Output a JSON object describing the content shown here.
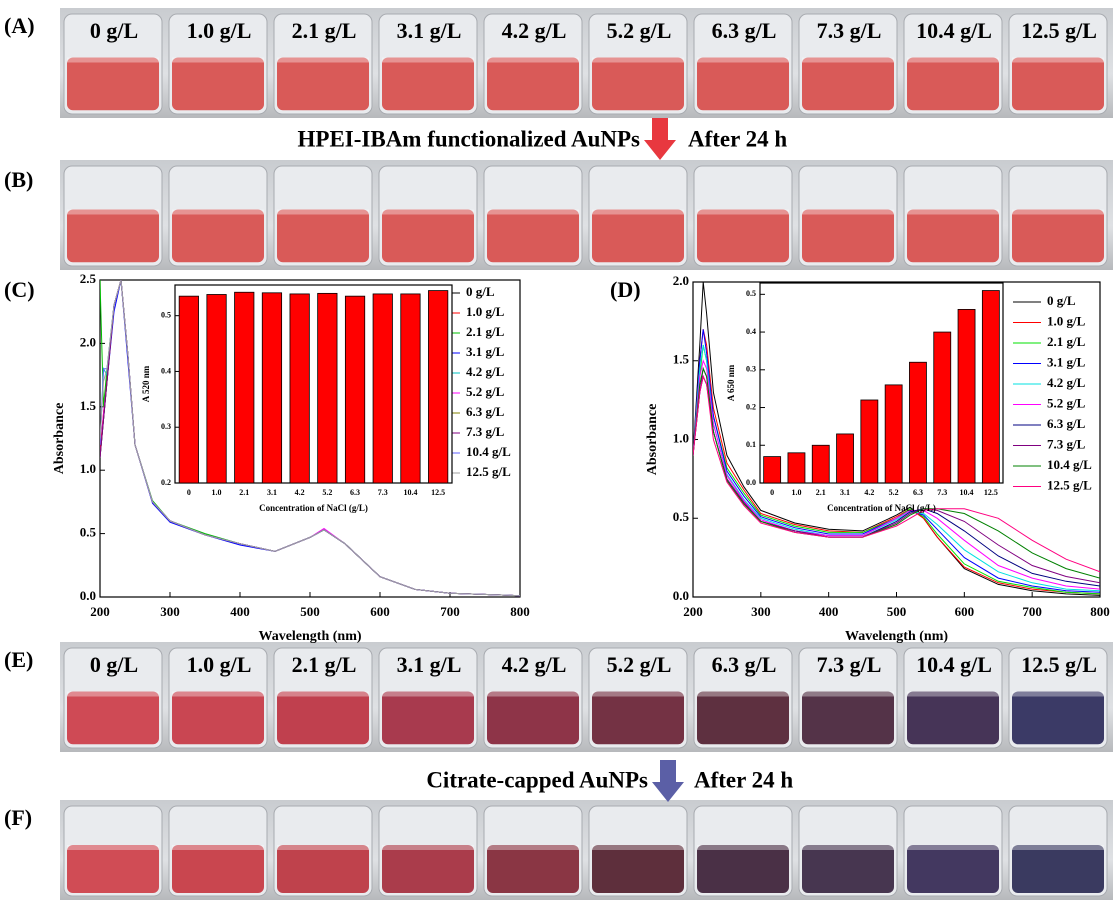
{
  "panel_labels": [
    "(A)",
    "(B)",
    "(C)",
    "(D)",
    "(E)",
    "(F)"
  ],
  "photo_A": {
    "vial_labels": [
      "0 g/L",
      "1.0 g/L",
      "2.1 g/L",
      "3.1 g/L",
      "4.2 g/L",
      "5.2 g/L",
      "6.3 g/L",
      "7.3 g/L",
      "10.4 g/L",
      "12.5 g/L"
    ]
  },
  "caption_1": {
    "text": "HPEI-IBAm functionalized AuNPs",
    "after": "After 24 h"
  },
  "photo_E": {
    "vial_labels": [
      "0 g/L",
      "1.0 g/L",
      "2.1 g/L",
      "3.1 g/L",
      "4.2 g/L",
      "5.2 g/L",
      "6.3 g/L",
      "7.3 g/L",
      "10.4 g/L",
      "12.5 g/L"
    ]
  },
  "caption_2": {
    "text": "Citrate-capped AuNPs",
    "after": "After 24 h"
  },
  "chart_data": [
    {
      "type": "line",
      "x_label": "Wavelength (nm)",
      "y_label": "Absorbance",
      "xlim": [
        200,
        800
      ],
      "xticks": [
        200,
        300,
        400,
        500,
        600,
        700,
        800
      ],
      "ylim": [
        0,
        2.5
      ],
      "yticks": [
        {
          "value": 0,
          "label": "0.0"
        },
        0.5,
        {
          "value": 1,
          "label": "1.0"
        },
        1.5,
        {
          "value": 2,
          "label": "2.0"
        },
        2.5
      ],
      "x": [
        200,
        205,
        210,
        220,
        230,
        240,
        250,
        275,
        300,
        350,
        400,
        450,
        500,
        520,
        550,
        600,
        650,
        700,
        800
      ],
      "series": [
        {
          "name": "0 g/L",
          "color": "#000000",
          "values": [
            1.1,
            1.4,
            1.7,
            2.3,
            2.5,
            1.9,
            1.2,
            0.75,
            0.6,
            0.49,
            0.42,
            0.36,
            0.47,
            0.53,
            0.42,
            0.16,
            0.06,
            0.03,
            0.01
          ]
        },
        {
          "name": "1.0 g/L",
          "color": "#ff0000",
          "values": [
            1.15,
            1.45,
            1.75,
            2.3,
            2.5,
            1.9,
            1.2,
            0.75,
            0.6,
            0.49,
            0.42,
            0.36,
            0.47,
            0.53,
            0.42,
            0.16,
            0.06,
            0.03,
            0.01
          ]
        },
        {
          "name": "2.1 g/L",
          "color": "#00c000",
          "values": [
            2.5,
            1.5,
            1.8,
            2.3,
            2.5,
            1.9,
            1.2,
            0.76,
            0.6,
            0.5,
            0.42,
            0.36,
            0.47,
            0.53,
            0.42,
            0.16,
            0.06,
            0.03,
            0.01
          ]
        },
        {
          "name": "3.1 g/L",
          "color": "#0000ff",
          "values": [
            1.1,
            1.4,
            1.7,
            2.25,
            2.5,
            1.85,
            1.2,
            0.74,
            0.59,
            0.49,
            0.41,
            0.36,
            0.47,
            0.53,
            0.42,
            0.16,
            0.06,
            0.03,
            0.01
          ]
        },
        {
          "name": "4.2 g/L",
          "color": "#00c0c0",
          "values": [
            1.2,
            1.8,
            1.75,
            2.3,
            2.5,
            1.9,
            1.2,
            0.75,
            0.6,
            0.49,
            0.42,
            0.36,
            0.47,
            0.53,
            0.42,
            0.16,
            0.06,
            0.03,
            0.01
          ]
        },
        {
          "name": "5.2 g/L",
          "color": "#ff00ff",
          "values": [
            1.1,
            1.45,
            1.7,
            2.3,
            2.5,
            1.9,
            1.2,
            0.75,
            0.6,
            0.49,
            0.42,
            0.36,
            0.47,
            0.54,
            0.42,
            0.16,
            0.06,
            0.03,
            0.01
          ]
        },
        {
          "name": "6.3 g/L",
          "color": "#808000",
          "values": [
            1.1,
            1.4,
            1.7,
            2.3,
            2.5,
            1.9,
            1.2,
            0.75,
            0.6,
            0.49,
            0.42,
            0.36,
            0.47,
            0.53,
            0.42,
            0.16,
            0.06,
            0.03,
            0.01
          ]
        },
        {
          "name": "7.3 g/L",
          "color": "#800080",
          "values": [
            1.1,
            1.4,
            1.7,
            2.3,
            2.5,
            1.9,
            1.2,
            0.75,
            0.6,
            0.49,
            0.42,
            0.36,
            0.47,
            0.53,
            0.42,
            0.16,
            0.06,
            0.03,
            0.01
          ]
        },
        {
          "name": "10.4 g/L",
          "color": "#6060ff",
          "values": [
            1.2,
            1.8,
            1.8,
            2.3,
            2.5,
            1.9,
            1.2,
            0.75,
            0.6,
            0.49,
            0.42,
            0.36,
            0.47,
            0.53,
            0.42,
            0.16,
            0.06,
            0.03,
            0.01
          ]
        },
        {
          "name": "12.5 g/L",
          "color": "#a0a0a0",
          "values": [
            1.25,
            1.7,
            1.8,
            2.3,
            2.5,
            1.9,
            1.2,
            0.75,
            0.6,
            0.49,
            0.42,
            0.36,
            0.47,
            0.53,
            0.42,
            0.16,
            0.06,
            0.03,
            0.01
          ]
        }
      ]
    },
    {
      "type": "bar",
      "x_label": "Concentration of NaCl (g/L)",
      "y_label": "A 520 nm",
      "categories": [
        "0",
        "1.0",
        "2.1",
        "3.1",
        "4.2",
        "5.2",
        "6.3",
        "7.3",
        "10.4",
        "12.5"
      ],
      "values": [
        0.535,
        0.538,
        0.542,
        0.541,
        0.539,
        0.54,
        0.535,
        0.539,
        0.539,
        0.545
      ],
      "color": "#ff0000",
      "ylim": [
        0.2,
        0.555
      ],
      "yticks": [
        0.2,
        0.3,
        0.4,
        0.5
      ]
    },
    {
      "type": "line",
      "x_label": "Wavelength (nm)",
      "y_label": "Absorbance",
      "xlim": [
        200,
        800
      ],
      "xticks": [
        200,
        300,
        400,
        500,
        600,
        700,
        800
      ],
      "ylim": [
        0,
        2.0
      ],
      "yticks": [
        {
          "value": 0,
          "label": "0.0"
        },
        0.5,
        {
          "value": 1,
          "label": "1.0"
        },
        1.5,
        {
          "value": 2,
          "label": "2.0"
        }
      ],
      "x": [
        200,
        210,
        215,
        220,
        230,
        250,
        275,
        300,
        350,
        400,
        450,
        500,
        520,
        540,
        560,
        600,
        650,
        700,
        750,
        800
      ],
      "series": [
        {
          "name": "0 g/L",
          "color": "#000000",
          "values": [
            0.9,
            1.6,
            2.0,
            1.8,
            1.3,
            0.9,
            0.7,
            0.55,
            0.47,
            0.43,
            0.42,
            0.52,
            0.57,
            0.5,
            0.38,
            0.18,
            0.08,
            0.04,
            0.02,
            0.01
          ]
        },
        {
          "name": "1.0 g/L",
          "color": "#ff0000",
          "values": [
            0.9,
            1.5,
            1.7,
            1.6,
            1.2,
            0.85,
            0.68,
            0.53,
            0.46,
            0.42,
            0.41,
            0.51,
            0.56,
            0.5,
            0.38,
            0.19,
            0.09,
            0.05,
            0.03,
            0.02
          ]
        },
        {
          "name": "2.1 g/L",
          "color": "#00e000",
          "values": [
            0.9,
            1.4,
            1.6,
            1.5,
            1.15,
            0.82,
            0.66,
            0.52,
            0.45,
            0.41,
            0.41,
            0.5,
            0.56,
            0.51,
            0.4,
            0.21,
            0.1,
            0.06,
            0.03,
            0.02
          ]
        },
        {
          "name": "3.1 g/L",
          "color": "#0000ff",
          "values": [
            0.9,
            1.5,
            1.7,
            1.55,
            1.15,
            0.8,
            0.64,
            0.51,
            0.44,
            0.4,
            0.4,
            0.5,
            0.55,
            0.52,
            0.43,
            0.25,
            0.12,
            0.07,
            0.04,
            0.03
          ]
        },
        {
          "name": "4.2 g/L",
          "color": "#00e0e0",
          "values": [
            0.9,
            1.45,
            1.6,
            1.5,
            1.1,
            0.78,
            0.62,
            0.5,
            0.43,
            0.39,
            0.39,
            0.49,
            0.54,
            0.53,
            0.46,
            0.3,
            0.16,
            0.09,
            0.05,
            0.04
          ]
        },
        {
          "name": "5.2 g/L",
          "color": "#ff00ff",
          "values": [
            0.9,
            1.4,
            1.5,
            1.45,
            1.1,
            0.77,
            0.61,
            0.49,
            0.42,
            0.39,
            0.39,
            0.5,
            0.55,
            0.55,
            0.5,
            0.36,
            0.2,
            0.12,
            0.07,
            0.05
          ]
        },
        {
          "name": "6.3 g/L",
          "color": "#000080",
          "values": [
            0.9,
            1.3,
            1.4,
            1.35,
            1.05,
            0.75,
            0.6,
            0.48,
            0.42,
            0.38,
            0.38,
            0.48,
            0.54,
            0.56,
            0.53,
            0.42,
            0.26,
            0.15,
            0.1,
            0.07
          ]
        },
        {
          "name": "7.3 g/L",
          "color": "#800080",
          "values": [
            0.9,
            1.3,
            1.45,
            1.4,
            1.05,
            0.75,
            0.6,
            0.48,
            0.42,
            0.38,
            0.38,
            0.47,
            0.53,
            0.56,
            0.55,
            0.48,
            0.33,
            0.2,
            0.13,
            0.09
          ]
        },
        {
          "name": "10.4 g/L",
          "color": "#008000",
          "values": [
            0.9,
            1.35,
            1.45,
            1.4,
            1.05,
            0.74,
            0.59,
            0.48,
            0.41,
            0.38,
            0.38,
            0.46,
            0.52,
            0.56,
            0.56,
            0.53,
            0.42,
            0.28,
            0.18,
            0.12
          ]
        },
        {
          "name": "12.5 g/L",
          "color": "#ff0080",
          "values": [
            0.9,
            1.3,
            1.4,
            1.35,
            1.0,
            0.73,
            0.58,
            0.47,
            0.41,
            0.38,
            0.38,
            0.45,
            0.5,
            0.55,
            0.56,
            0.56,
            0.5,
            0.36,
            0.24,
            0.16
          ]
        }
      ]
    },
    {
      "type": "bar",
      "x_label": "Concentration of NaCl (g/L)",
      "y_label": "A 650 nm",
      "categories": [
        "0",
        "1.0",
        "2.1",
        "3.1",
        "4.2",
        "5.2",
        "6.3",
        "7.3",
        "10.4",
        "12.5"
      ],
      "values": [
        0.07,
        0.08,
        0.1,
        0.13,
        0.22,
        0.26,
        0.32,
        0.4,
        0.46,
        0.51
      ],
      "color": "#ff0000",
      "ylim": [
        0,
        0.53
      ],
      "yticks": [
        {
          "value": 0,
          "label": "0.0"
        },
        0.1,
        0.2,
        0.3,
        0.4,
        0.5
      ]
    }
  ]
}
